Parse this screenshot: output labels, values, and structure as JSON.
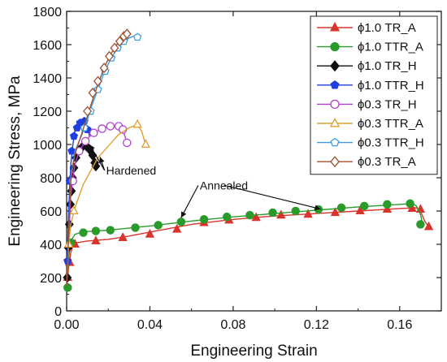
{
  "chart_data": {
    "type": "line",
    "title": "",
    "xlabel": "Engineering Strain",
    "ylabel": "Engineering Stress, MPa",
    "xlim": [
      0,
      0.18
    ],
    "ylim": [
      0,
      1800
    ],
    "xticks": [
      0.0,
      0.04,
      0.08,
      0.12,
      0.16
    ],
    "xtick_labels": [
      "0.00",
      "0.04",
      "0.08",
      "0.12",
      "0.16"
    ],
    "yticks": [
      0,
      200,
      400,
      600,
      800,
      1000,
      1200,
      1400,
      1600,
      1800
    ],
    "ytick_labels": [
      "0",
      "200",
      "400",
      "600",
      "800",
      "1000",
      "1200",
      "1400",
      "1600",
      "1800"
    ],
    "grid": false,
    "legend_position": "top-right",
    "series": [
      {
        "name": "ϕ1.0 TR_A",
        "color": "#d9342b",
        "marker": "triangle",
        "filled": true,
        "x": [
          0,
          0.001,
          0.002,
          0.003,
          0.005,
          0.01,
          0.02,
          0.03,
          0.045,
          0.06,
          0.08,
          0.1,
          0.12,
          0.14,
          0.16,
          0.168,
          0.17,
          0.172,
          0.174
        ],
        "y": [
          130,
          270,
          350,
          390,
          410,
          420,
          430,
          450,
          485,
          520,
          550,
          570,
          585,
          600,
          615,
          620,
          600,
          540,
          505
        ],
        "marker_x": [
          0.0005,
          0.0015,
          0.004,
          0.014,
          0.027,
          0.04,
          0.053,
          0.066,
          0.078,
          0.091,
          0.103,
          0.116,
          0.129,
          0.141,
          0.154,
          0.166,
          0.17,
          0.174
        ],
        "marker_y": [
          200,
          290,
          400,
          420,
          440,
          460,
          490,
          530,
          545,
          560,
          575,
          580,
          590,
          600,
          610,
          615,
          610,
          505
        ]
      },
      {
        "name": "ϕ1.0 TTR_A",
        "color": "#2a9a2a",
        "marker": "circle",
        "filled": true,
        "x": [
          0,
          0.001,
          0.002,
          0.004,
          0.008,
          0.02,
          0.04,
          0.06,
          0.08,
          0.1,
          0.12,
          0.14,
          0.16,
          0.166,
          0.168,
          0.17,
          0.171
        ],
        "y": [
          140,
          320,
          420,
          460,
          475,
          485,
          510,
          540,
          565,
          585,
          605,
          625,
          640,
          645,
          630,
          580,
          520
        ],
        "marker_x": [
          0.0005,
          0.002,
          0.008,
          0.014,
          0.021,
          0.033,
          0.044,
          0.055,
          0.066,
          0.077,
          0.088,
          0.099,
          0.11,
          0.121,
          0.132,
          0.143,
          0.154,
          0.165,
          0.17
        ],
        "marker_y": [
          140,
          410,
          470,
          480,
          485,
          500,
          515,
          535,
          550,
          565,
          575,
          590,
          600,
          610,
          620,
          630,
          640,
          645,
          520
        ]
      },
      {
        "name": "ϕ1.0 TR_H",
        "color": "#111111",
        "marker": "diamond",
        "filled": true,
        "x": [
          0,
          0.001,
          0.002,
          0.003,
          0.004,
          0.006,
          0.008,
          0.01,
          0.012,
          0.0135,
          0.014
        ],
        "y": [
          180,
          500,
          730,
          880,
          950,
          985,
          990,
          980,
          940,
          900,
          870
        ],
        "marker_x": [
          0.0003,
          0.0008,
          0.0013,
          0.0018,
          0.0023,
          0.0028,
          0.0035,
          0.0045,
          0.006,
          0.0075,
          0.0095,
          0.011,
          0.0125,
          0.0135,
          0.014
        ],
        "marker_y": [
          200,
          380,
          520,
          640,
          720,
          800,
          860,
          920,
          965,
          985,
          990,
          970,
          935,
          890,
          870
        ]
      },
      {
        "name": "ϕ1.0 TTR_H",
        "color": "#1f3ee0",
        "marker": "pentagon",
        "filled": true,
        "x": [
          0,
          0.001,
          0.002,
          0.003,
          0.004,
          0.006,
          0.008,
          0.01,
          0.011
        ],
        "y": [
          200,
          620,
          880,
          1000,
          1080,
          1120,
          1140,
          1100,
          1050
        ],
        "marker_x": [
          0.0005,
          0.0015,
          0.0025,
          0.0035,
          0.005,
          0.0065,
          0.0085,
          0.01
        ],
        "marker_y": [
          300,
          780,
          960,
          1050,
          1100,
          1130,
          1140,
          1090
        ]
      },
      {
        "name": "ϕ0.3 TR_H",
        "color": "#b040d0",
        "marker": "circle",
        "filled": false,
        "x": [
          0,
          0.002,
          0.004,
          0.006,
          0.009,
          0.012,
          0.016,
          0.02,
          0.024,
          0.027,
          0.029
        ],
        "y": [
          150,
          700,
          880,
          960,
          1020,
          1060,
          1090,
          1110,
          1110,
          1090,
          1010
        ],
        "marker_x": [
          0.003,
          0.006,
          0.009,
          0.013,
          0.017,
          0.021,
          0.025,
          0.027,
          0.029
        ],
        "marker_y": [
          780,
          960,
          1020,
          1070,
          1095,
          1110,
          1110,
          1090,
          1010
        ]
      },
      {
        "name": "ϕ0.3 TTR_A",
        "color": "#e0a030",
        "marker": "triangle",
        "filled": false,
        "x": [
          0,
          0.001,
          0.002,
          0.004,
          0.008,
          0.015,
          0.025,
          0.03,
          0.034,
          0.036,
          0.038
        ],
        "y": [
          150,
          400,
          520,
          620,
          760,
          920,
          1060,
          1100,
          1120,
          1080,
          1000
        ],
        "marker_x": [
          0.001,
          0.0035,
          0.034,
          0.038
        ],
        "marker_y": [
          400,
          600,
          1120,
          1000
        ]
      },
      {
        "name": "ϕ0.3 TTR_H",
        "color": "#3a9ee0",
        "marker": "pentagon",
        "filled": false,
        "x": [
          0,
          0.002,
          0.004,
          0.006,
          0.008,
          0.01,
          0.012,
          0.015,
          0.018,
          0.021,
          0.024,
          0.027,
          0.03,
          0.032,
          0.034
        ],
        "y": [
          150,
          800,
          960,
          1020,
          1080,
          1150,
          1230,
          1330,
          1430,
          1510,
          1570,
          1610,
          1640,
          1650,
          1645
        ],
        "marker_x": [
          0.0085,
          0.0115,
          0.015,
          0.0185,
          0.0215,
          0.0245,
          0.0275,
          0.034
        ],
        "marker_y": [
          1100,
          1200,
          1330,
          1440,
          1520,
          1580,
          1620,
          1645
        ]
      },
      {
        "name": "ϕ0.3 TR_A",
        "color": "#a05030",
        "marker": "diamond",
        "filled": false,
        "x": [
          0,
          0.002,
          0.004,
          0.006,
          0.009,
          0.012,
          0.015,
          0.018,
          0.021,
          0.024,
          0.026,
          0.028,
          0.029
        ],
        "y": [
          150,
          780,
          940,
          1020,
          1130,
          1250,
          1360,
          1460,
          1540,
          1600,
          1630,
          1655,
          1665
        ],
        "marker_x": [
          0.01,
          0.0125,
          0.015,
          0.018,
          0.0205,
          0.023,
          0.0255,
          0.0275,
          0.029
        ],
        "marker_y": [
          1200,
          1310,
          1380,
          1460,
          1530,
          1580,
          1620,
          1650,
          1665
        ]
      }
    ],
    "annotations": [
      {
        "text": "Hardened",
        "x": 0.019,
        "y": 820,
        "arrows_to": [
          [
            0.011,
            1000
          ],
          [
            0.016,
            925
          ]
        ]
      },
      {
        "text": "Annealed",
        "x": 0.064,
        "y": 730,
        "arrows_to": [
          [
            0.055,
            560
          ],
          [
            0.122,
            612
          ]
        ]
      }
    ]
  }
}
